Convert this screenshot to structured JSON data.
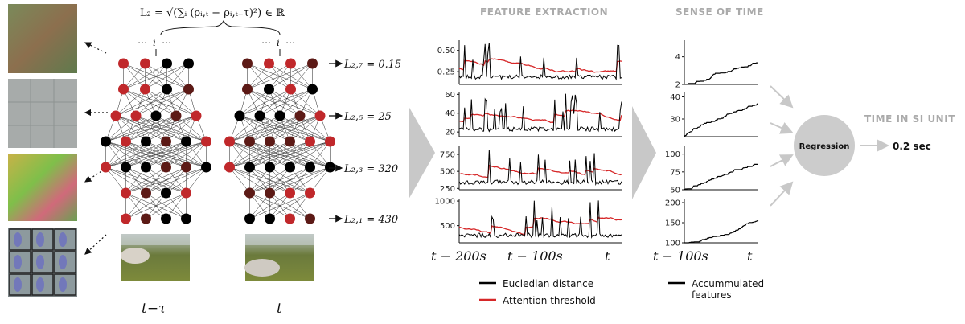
{
  "formula": "L₂ = √(∑ᵢ (ρᵢ,ₜ − ρᵢ,ₜ₋τ)²) ∈ ℝ",
  "index_label": "i",
  "frame_labels": {
    "left": "t−τ",
    "right": "t"
  },
  "layer_losses": [
    {
      "label": "L₂,₇ = 0.15"
    },
    {
      "label": "L₂,₅ = 25"
    },
    {
      "label": "L₂,₃ = 320"
    },
    {
      "label": "L₂,₁ = 430"
    }
  ],
  "headers": {
    "feature_extraction": "FEATURE EXTRACTION",
    "sense_of_time": "SENSE OF TIME",
    "time_si": "TIME IN SI UNIT"
  },
  "regression": {
    "label": "Regression",
    "result": "0.2 sec"
  },
  "colors": {
    "dist": "#000000",
    "threshold": "#d62728",
    "arrow": "#c8c8c8",
    "node_black": "#000000",
    "node_red": "#c0282b",
    "node_dark": "#5c1a16"
  },
  "chart_data": [
    {
      "type": "line",
      "panel": "feature-1",
      "x": [
        0,
        200
      ],
      "yticks": [
        0.25,
        0.5
      ],
      "ylim": [
        0.1,
        0.62
      ],
      "series": [
        {
          "name": "Eucledian distance"
        },
        {
          "name": "Attention threshold"
        }
      ]
    },
    {
      "type": "line",
      "panel": "feature-2",
      "x": [
        0,
        200
      ],
      "yticks": [
        20,
        40,
        60
      ],
      "ylim": [
        15,
        62
      ],
      "series": [
        {
          "name": "Eucledian distance"
        },
        {
          "name": "Attention threshold"
        }
      ]
    },
    {
      "type": "line",
      "panel": "feature-3",
      "x": [
        0,
        200
      ],
      "yticks": [
        250,
        500,
        750
      ],
      "ylim": [
        230,
        880
      ],
      "series": [
        {
          "name": "Eucledian distance"
        },
        {
          "name": "Attention threshold"
        }
      ]
    },
    {
      "type": "line",
      "panel": "feature-4",
      "x": [
        0,
        200
      ],
      "yticks": [
        500,
        1000
      ],
      "ylim": [
        150,
        1050
      ],
      "series": [
        {
          "name": "Eucledian distance"
        },
        {
          "name": "Attention threshold"
        }
      ]
    },
    {
      "type": "line",
      "panel": "time-1",
      "yticks": [
        2,
        4
      ],
      "ylim": [
        2,
        5.2
      ],
      "series": [
        {
          "name": "Accummulated features"
        }
      ]
    },
    {
      "type": "line",
      "panel": "time-2",
      "yticks": [
        30,
        40
      ],
      "ylim": [
        22,
        42
      ],
      "series": [
        {
          "name": "Accummulated features"
        }
      ]
    },
    {
      "type": "line",
      "panel": "time-3",
      "yticks": [
        50,
        75,
        100
      ],
      "ylim": [
        50,
        112
      ],
      "series": [
        {
          "name": "Accummulated features"
        }
      ]
    },
    {
      "type": "line",
      "panel": "time-4",
      "yticks": [
        100,
        150,
        200
      ],
      "ylim": [
        100,
        210
      ],
      "series": [
        {
          "name": "Accummulated features"
        }
      ]
    }
  ],
  "x_axis": {
    "feature": [
      "t − 200s",
      "t − 100s",
      "t"
    ],
    "time": [
      "t − 100s",
      "t"
    ]
  },
  "legend": {
    "dist": "Eucledian distance",
    "threshold": "Attention threshold",
    "accum_line1": "Accummulated",
    "accum_line2": "features"
  }
}
